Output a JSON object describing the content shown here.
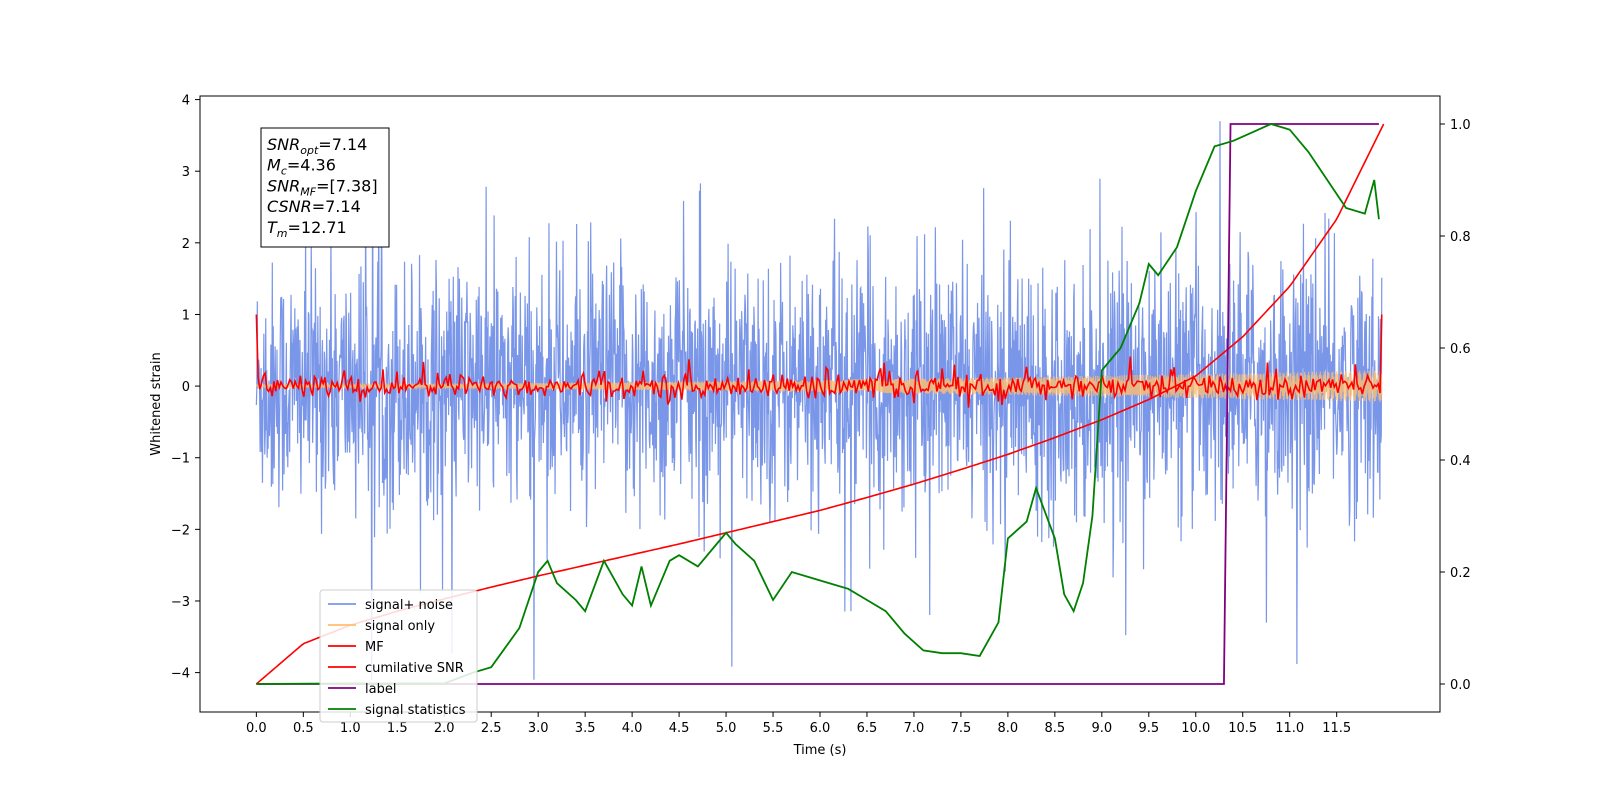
{
  "chart_data": {
    "type": "line",
    "xlabel": "Time (s)",
    "ylabel": "Whitened strain",
    "xlim": [
      -0.6,
      12.6
    ],
    "ylim": [
      -4.55,
      4.05
    ],
    "y2lim": [
      -0.05,
      1.05
    ],
    "x_ticks": [
      "0.0",
      "0.5",
      "1.0",
      "1.5",
      "2.0",
      "2.5",
      "3.0",
      "3.5",
      "4.0",
      "4.5",
      "5.0",
      "5.5",
      "6.0",
      "6.5",
      "7.0",
      "7.5",
      "8.0",
      "8.5",
      "9.0",
      "9.5",
      "10.0",
      "10.5",
      "11.0",
      "11.5"
    ],
    "y_ticks": [
      "4",
      "3",
      "2",
      "1",
      "0",
      "−1",
      "−2",
      "−3",
      "−4"
    ],
    "y2_ticks": [
      "1.0",
      "0.8",
      "0.6",
      "0.4",
      "0.2",
      "0.0"
    ],
    "annotation": [
      {
        "base": "SNR",
        "sub": "opt",
        "value": "=7.14"
      },
      {
        "base": "M",
        "sub": "c",
        "value": "=4.36"
      },
      {
        "base": "SNR",
        "sub": "MF",
        "value": "=[7.38]"
      },
      {
        "base": "CSNR",
        "sub": "",
        "value": "=7.14"
      },
      {
        "base": "T",
        "sub": "m",
        "value": "=12.71"
      }
    ],
    "legend_position": "lower-left",
    "series": [
      {
        "name": "signal+ noise",
        "color": "#7a96e8",
        "axis": "left",
        "note": "noise band roughly ±1.4 with spikes up to 3.7 / down to -4.1"
      },
      {
        "name": "signal only",
        "color": "#ffbe6f",
        "axis": "left",
        "note": "chirp with amplitude growing from 0.02 to 0.22"
      },
      {
        "name": "MF",
        "color": "#ff0000",
        "axis": "left",
        "note": "matched-filter output fluctuating about 0, spikes to 1.0 at ends"
      },
      {
        "name": "cumilative SNR",
        "color": "#ff0000",
        "axis": "right",
        "x": [
          0.0,
          0.5,
          1.0,
          1.5,
          2.0,
          2.5,
          3.0,
          3.5,
          4.0,
          4.5,
          5.0,
          5.5,
          6.0,
          6.5,
          7.0,
          7.5,
          8.0,
          8.5,
          9.0,
          9.5,
          10.0,
          10.5,
          11.0,
          11.5,
          12.0
        ],
        "y": [
          0.0,
          0.072,
          0.105,
          0.13,
          0.152,
          0.173,
          0.193,
          0.212,
          0.231,
          0.25,
          0.27,
          0.29,
          0.31,
          0.333,
          0.357,
          0.383,
          0.41,
          0.44,
          0.472,
          0.508,
          0.55,
          0.62,
          0.71,
          0.83,
          1.0
        ]
      },
      {
        "name": "label",
        "color": "#800080",
        "axis": "right",
        "x": [
          0.0,
          10.3,
          10.37,
          11.95
        ],
        "y": [
          0.0,
          0.0,
          1.0,
          1.0
        ]
      },
      {
        "name": "signal statistics",
        "color": "#008000",
        "axis": "right",
        "x": [
          0.0,
          1.0,
          2.0,
          2.3,
          2.5,
          2.8,
          3.0,
          3.1,
          3.2,
          3.4,
          3.5,
          3.7,
          3.9,
          4.0,
          4.1,
          4.2,
          4.4,
          4.5,
          4.7,
          4.9,
          5.0,
          5.1,
          5.3,
          5.5,
          5.7,
          5.9,
          6.1,
          6.3,
          6.5,
          6.7,
          6.9,
          7.1,
          7.3,
          7.5,
          7.7,
          7.9,
          8.0,
          8.2,
          8.3,
          8.5,
          8.6,
          8.7,
          8.8,
          8.9,
          9.0,
          9.2,
          9.4,
          9.5,
          9.6,
          9.8,
          10.0,
          10.2,
          10.4,
          10.6,
          10.8,
          11.0,
          11.2,
          11.4,
          11.6,
          11.8,
          11.9,
          11.95
        ],
        "y": [
          0.0,
          0.001,
          0.001,
          0.02,
          0.03,
          0.1,
          0.2,
          0.22,
          0.18,
          0.15,
          0.13,
          0.22,
          0.16,
          0.14,
          0.21,
          0.14,
          0.22,
          0.23,
          0.21,
          0.25,
          0.27,
          0.25,
          0.22,
          0.15,
          0.2,
          0.19,
          0.18,
          0.17,
          0.15,
          0.13,
          0.09,
          0.06,
          0.055,
          0.055,
          0.05,
          0.11,
          0.26,
          0.29,
          0.35,
          0.26,
          0.16,
          0.13,
          0.18,
          0.3,
          0.56,
          0.6,
          0.68,
          0.75,
          0.73,
          0.78,
          0.88,
          0.96,
          0.97,
          0.985,
          1.0,
          0.99,
          0.95,
          0.9,
          0.85,
          0.84,
          0.9,
          0.83
        ]
      }
    ]
  }
}
